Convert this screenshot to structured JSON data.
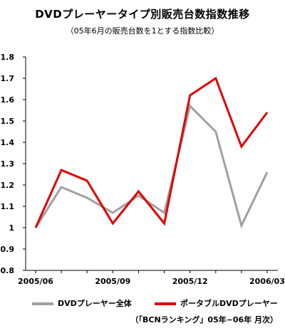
{
  "title": "DVDプレーヤータイプ別販売台数指数推移",
  "subtitle": "（05年6月の販売台数を1とする指数比較）",
  "source": "（「BCNランキング」05年−06年 月次）",
  "chart_data": {
    "type": "line",
    "x": [
      "2005/06",
      "2005/07",
      "2005/08",
      "2005/09",
      "2005/10",
      "2005/11",
      "2005/12",
      "2006/01",
      "2006/02",
      "2006/03"
    ],
    "x_tick_labels": [
      "2005/06",
      "2005/09",
      "2005/12",
      "2006/03"
    ],
    "y_tick_labels": [
      "0.8",
      "0.9",
      "1",
      "1.1",
      "1.2",
      "1.3",
      "1.4",
      "1.5",
      "1.6",
      "1.7",
      "1.8"
    ],
    "ylim": [
      0.8,
      1.8
    ],
    "grid": false,
    "legend_position": "bottom",
    "series": [
      {
        "name": "DVDプレーヤー全体",
        "color": "#a0a0a0",
        "values": [
          1.0,
          1.19,
          1.14,
          1.07,
          1.15,
          1.07,
          1.57,
          1.45,
          1.01,
          1.26
        ]
      },
      {
        "name": "ポータブルDVDプレーヤー",
        "color": "#e00000",
        "values": [
          1.0,
          1.27,
          1.22,
          1.02,
          1.17,
          1.02,
          1.62,
          1.7,
          1.38,
          1.54
        ]
      }
    ]
  }
}
